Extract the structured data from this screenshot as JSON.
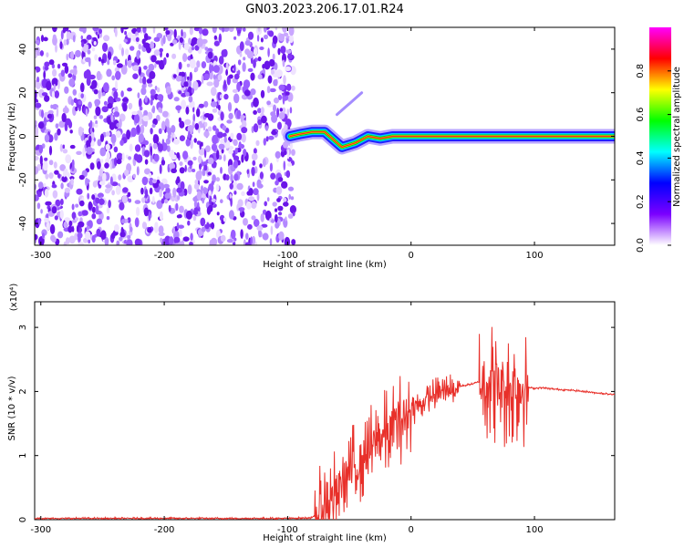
{
  "title": "GN03.2023.206.17.01.R24",
  "chart_data": [
    {
      "type": "heatmap",
      "xlabel": "Height of straight line (km)",
      "ylabel": "Frequency (Hz)",
      "xlim": [
        -305,
        165
      ],
      "ylim": [
        -50,
        50
      ],
      "xticks": [
        -300,
        -200,
        -100,
        0,
        100
      ],
      "yticks": [
        -40,
        -20,
        0,
        20,
        40
      ],
      "noise_region_x": [
        -305,
        -95
      ],
      "ridge": [
        {
          "x": -98,
          "y": 0
        },
        {
          "x": -90,
          "y": 1
        },
        {
          "x": -80,
          "y": 2
        },
        {
          "x": -70,
          "y": 2
        },
        {
          "x": -62,
          "y": -2
        },
        {
          "x": -56,
          "y": -5
        },
        {
          "x": -45,
          "y": -3
        },
        {
          "x": -35,
          "y": 0
        },
        {
          "x": -25,
          "y": -1
        },
        {
          "x": -15,
          "y": 0
        },
        {
          "x": 0,
          "y": 0
        },
        {
          "x": 50,
          "y": 0
        },
        {
          "x": 100,
          "y": 0
        },
        {
          "x": 165,
          "y": 0
        }
      ],
      "faint_branch": [
        {
          "x": -60,
          "y": 10
        },
        {
          "x": -50,
          "y": 15
        },
        {
          "x": -40,
          "y": 20
        }
      ],
      "colorbar": {
        "label": "Normalized spectral amplitude",
        "range": [
          0,
          1
        ],
        "ticks": [
          "0.0",
          "0.2",
          "0.4",
          "0.6",
          "0.8"
        ],
        "colors": [
          "#ffffff",
          "#7b00ff",
          "#0000ff",
          "#00ffff",
          "#00ff00",
          "#ffff00",
          "#ff0000",
          "#ff00ff"
        ]
      }
    },
    {
      "type": "line",
      "xlabel": "Height of straight line (km)",
      "ylabel": "SNR (10 * v/v)",
      "scale_label": "(x10⁴)",
      "xlim": [
        -305,
        165
      ],
      "ylim": [
        0,
        3.4
      ],
      "xticks": [
        -300,
        -200,
        -100,
        0,
        100
      ],
      "yticks": [
        0,
        1,
        2,
        3
      ],
      "color": "#e8302a",
      "series": [
        {
          "x": [
            -305,
            -250,
            -200,
            -150,
            -100,
            -80,
            -75,
            -70,
            -65,
            -60,
            -55,
            -50,
            -45,
            -40,
            -35,
            -30,
            -25,
            -20,
            -15,
            -10,
            -5,
            0,
            5,
            10,
            15,
            20,
            25,
            30,
            35,
            40,
            45,
            50,
            55,
            60,
            62,
            65,
            70,
            75,
            80,
            85,
            90,
            95,
            100,
            105,
            110,
            120,
            130,
            140,
            150,
            165
          ],
          "y": [
            0.02,
            0.02,
            0.02,
            0.02,
            0.02,
            0.03,
            0.1,
            0.2,
            0.3,
            0.45,
            0.6,
            0.75,
            0.85,
            0.95,
            1.05,
            1.15,
            1.25,
            1.35,
            1.45,
            1.55,
            1.62,
            1.7,
            1.78,
            1.85,
            1.9,
            1.95,
            2.0,
            2.02,
            2.05,
            2.08,
            2.1,
            2.12,
            2.15,
            2.18,
            2.2,
            2.15,
            2.1,
            2.05,
            2.05,
            2.1,
            2.08,
            2.06,
            2.05,
            2.06,
            2.05,
            2.03,
            2.02,
            2.0,
            1.98,
            1.95
          ]
        }
      ],
      "noise_band": [
        {
          "x": [
            -78,
            0
          ],
          "amplitude": 0.9
        },
        {
          "x": [
            0,
            40
          ],
          "amplitude": 0.35
        },
        {
          "x": [
            55,
            95
          ],
          "amplitude": 1.2
        }
      ]
    }
  ]
}
